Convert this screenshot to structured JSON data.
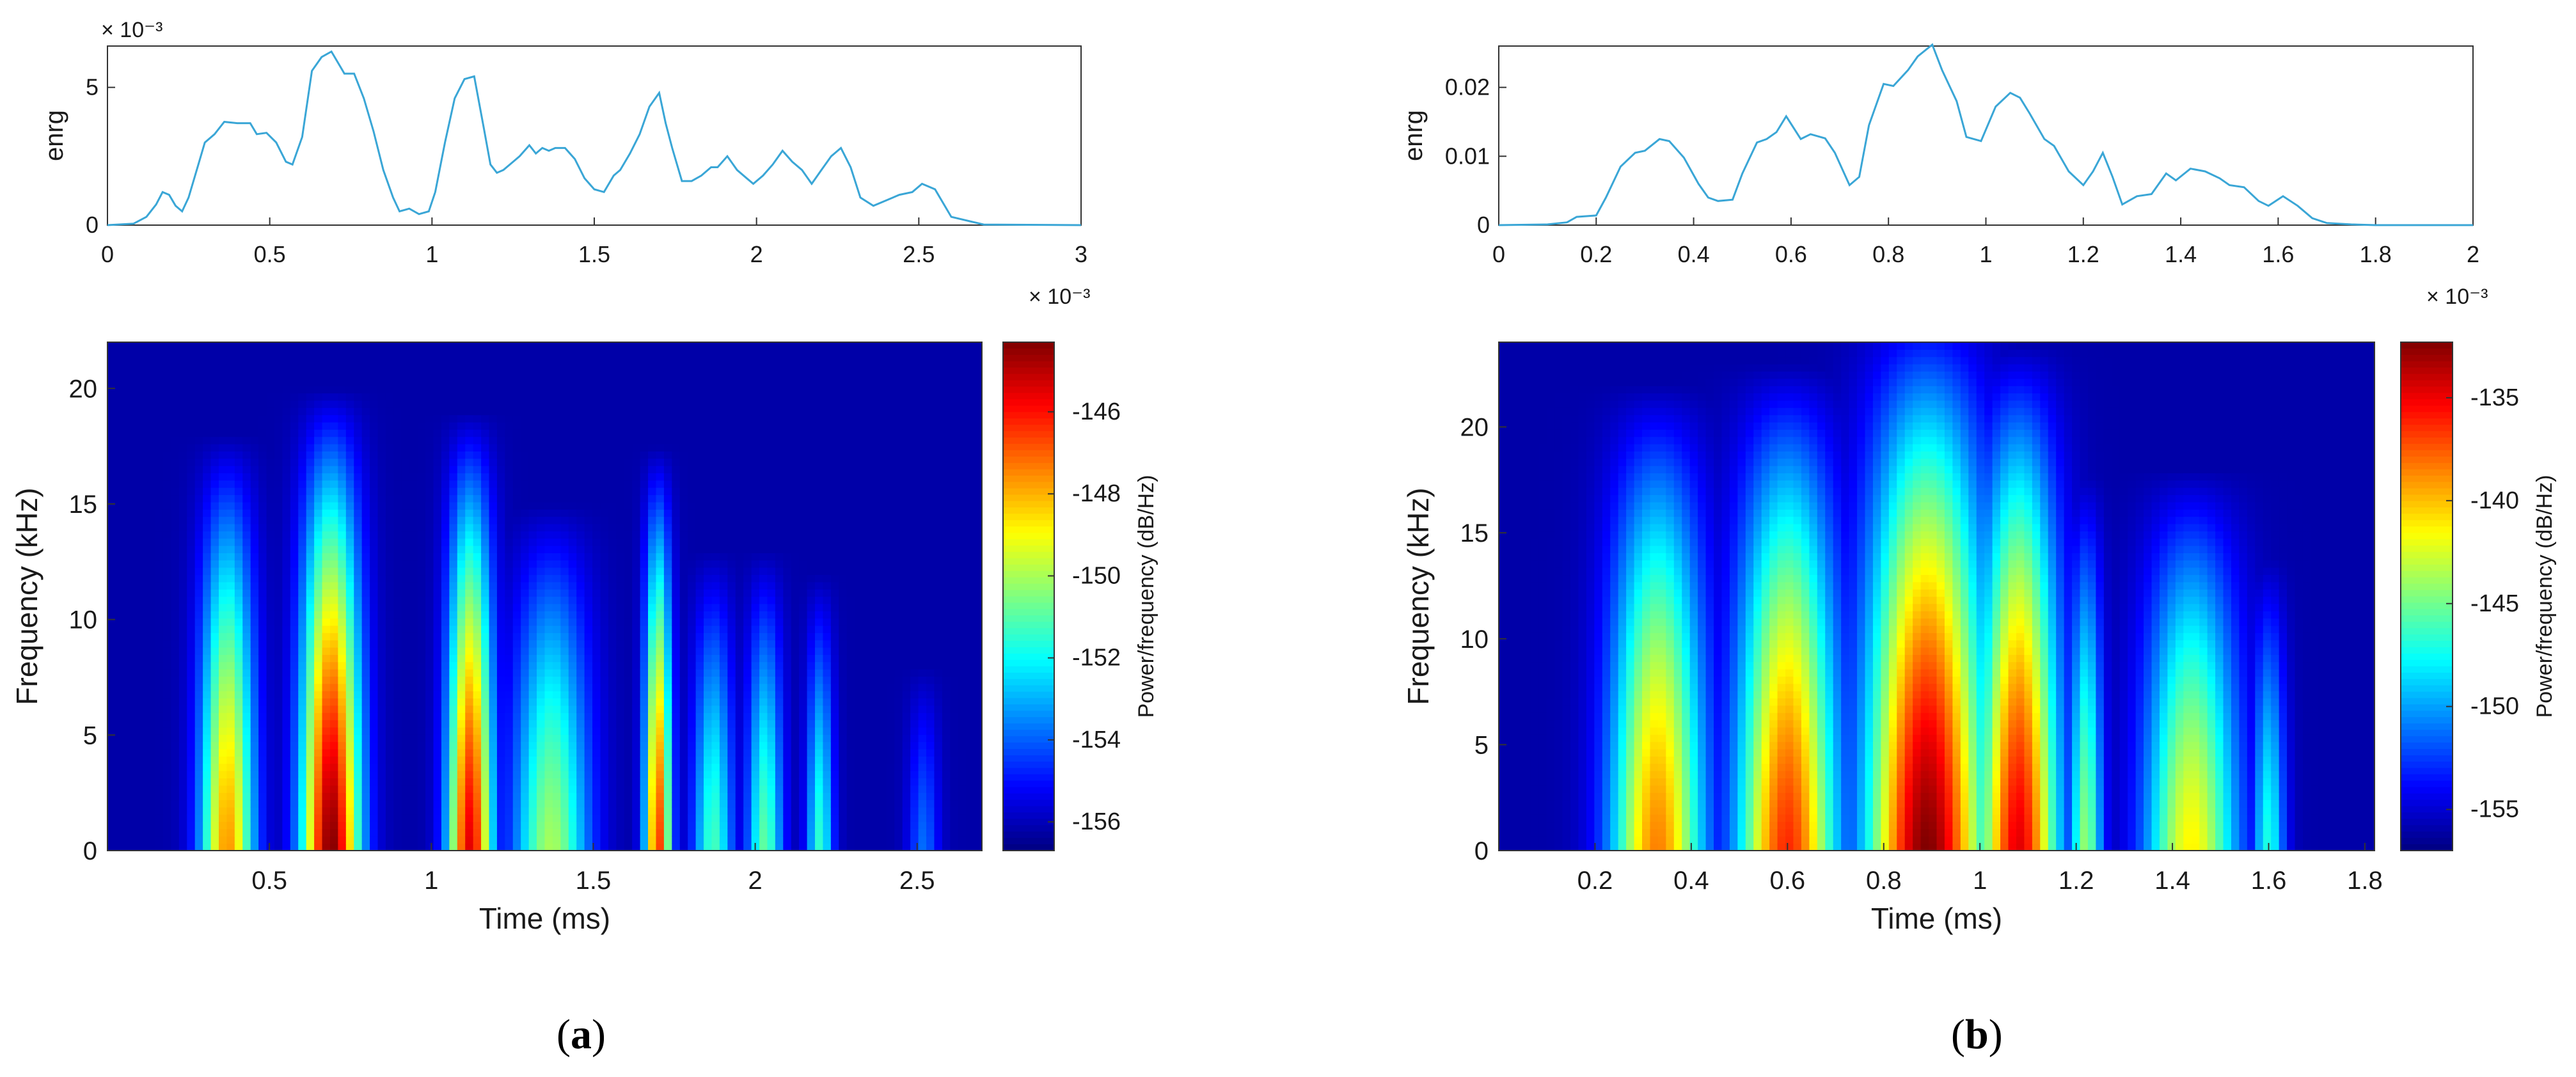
{
  "figure": {
    "panels": [
      {
        "label_open": "(",
        "label_letter": "a",
        "label_close": ")"
      },
      {
        "label_open": "(",
        "label_letter": "b",
        "label_close": ")"
      }
    ]
  },
  "chart_data": [
    {
      "type": "line",
      "panel": "a",
      "title": "",
      "xlabel": "",
      "ylabel": "enrg",
      "xlim": [
        0,
        3
      ],
      "ylim": [
        0,
        6.5
      ],
      "x_ticks": [
        "0",
        "0.5",
        "1",
        "1.5",
        "2",
        "2.5",
        "3"
      ],
      "y_ticks": [
        "0",
        "5"
      ],
      "y_tick_values": [
        0,
        5
      ],
      "exponent_label": "× 10⁻³",
      "line_color": "#3aa6d6",
      "grid": false,
      "series": [
        {
          "name": "energy",
          "x": [
            0,
            0.08,
            0.12,
            0.15,
            0.17,
            0.19,
            0.21,
            0.23,
            0.25,
            0.28,
            0.3,
            0.33,
            0.36,
            0.4,
            0.44,
            0.46,
            0.49,
            0.52,
            0.55,
            0.57,
            0.6,
            0.63,
            0.66,
            0.69,
            0.71,
            0.73,
            0.76,
            0.79,
            0.82,
            0.85,
            0.88,
            0.9,
            0.93,
            0.96,
            0.99,
            1.01,
            1.04,
            1.07,
            1.1,
            1.13,
            1.16,
            1.18,
            1.2,
            1.22,
            1.25,
            1.27,
            1.3,
            1.32,
            1.34,
            1.36,
            1.38,
            1.41,
            1.44,
            1.47,
            1.5,
            1.53,
            1.56,
            1.58,
            1.61,
            1.64,
            1.67,
            1.7,
            1.72,
            1.74,
            1.77,
            1.8,
            1.83,
            1.86,
            1.88,
            1.91,
            1.94,
            1.97,
            1.99,
            2.02,
            2.05,
            2.08,
            2.11,
            2.14,
            2.17,
            2.2,
            2.23,
            2.26,
            2.29,
            2.32,
            2.36,
            2.4,
            2.44,
            2.48,
            2.51,
            2.55,
            2.6,
            2.7,
            3.0
          ],
          "values": [
            0,
            0.05,
            0.3,
            0.75,
            1.2,
            1.1,
            0.7,
            0.5,
            1.0,
            2.2,
            3.0,
            3.3,
            3.75,
            3.7,
            3.7,
            3.3,
            3.35,
            3.0,
            2.3,
            2.2,
            3.2,
            5.6,
            6.1,
            6.3,
            5.9,
            5.5,
            5.5,
            4.6,
            3.4,
            2.0,
            1.0,
            0.5,
            0.6,
            0.4,
            0.5,
            1.2,
            3.0,
            4.6,
            5.3,
            5.4,
            3.5,
            2.2,
            1.9,
            2.0,
            2.3,
            2.5,
            2.9,
            2.6,
            2.8,
            2.7,
            2.8,
            2.8,
            2.4,
            1.7,
            1.3,
            1.2,
            1.8,
            2.0,
            2.6,
            3.3,
            4.3,
            4.8,
            3.7,
            2.8,
            1.6,
            1.6,
            1.8,
            2.1,
            2.1,
            2.5,
            2.0,
            1.7,
            1.5,
            1.8,
            2.2,
            2.7,
            2.3,
            2.0,
            1.5,
            2.0,
            2.5,
            2.8,
            2.1,
            1.0,
            0.7,
            0.9,
            1.1,
            1.2,
            1.5,
            1.3,
            0.3,
            0.02,
            0
          ]
        }
      ]
    },
    {
      "type": "heatmap",
      "panel": "a",
      "title": "",
      "xlabel": "Time (ms)",
      "ylabel": "Frequency (kHz)",
      "xlim": [
        0,
        2.7
      ],
      "ylim": [
        0,
        22
      ],
      "x_ticks": [
        "0.5",
        "1",
        "1.5",
        "2",
        "2.5"
      ],
      "x_tick_values": [
        0.5,
        1,
        1.5,
        2,
        2.5
      ],
      "y_ticks": [
        "0",
        "5",
        "10",
        "15",
        "20"
      ],
      "y_tick_values": [
        0,
        5,
        10,
        15,
        20
      ],
      "exponent_label": "× 10⁻³",
      "colorbar": {
        "label": "Power/frequency (dB/Hz)",
        "range": [
          -156.7,
          -144.3
        ],
        "ticks": [
          "-146",
          "-148",
          "-150",
          "-152",
          "-154",
          "-156"
        ],
        "tick_values": [
          -146,
          -148,
          -150,
          -152,
          -154,
          -156
        ],
        "colormap": "jet"
      },
      "grid": false,
      "series": [
        {
          "name": "burst",
          "center": 0.37,
          "width": 0.12,
          "peak": 0.72,
          "fmax": 18.0
        },
        {
          "name": "burst",
          "center": 0.69,
          "width": 0.13,
          "peak": 1.0,
          "fmax": 20.0
        },
        {
          "name": "burst",
          "center": 1.12,
          "width": 0.1,
          "peak": 0.9,
          "fmax": 19.0
        },
        {
          "name": "burst",
          "center": 1.37,
          "width": 0.17,
          "peak": 0.52,
          "fmax": 15.0
        },
        {
          "name": "burst",
          "center": 1.7,
          "width": 0.06,
          "peak": 0.82,
          "fmax": 17.5
        },
        {
          "name": "burst",
          "center": 1.87,
          "width": 0.09,
          "peak": 0.42,
          "fmax": 13.0
        },
        {
          "name": "burst",
          "center": 2.03,
          "width": 0.08,
          "peak": 0.45,
          "fmax": 13.0
        },
        {
          "name": "burst",
          "center": 2.2,
          "width": 0.06,
          "peak": 0.4,
          "fmax": 12.0
        },
        {
          "name": "burst",
          "center": 2.52,
          "width": 0.07,
          "peak": 0.2,
          "fmax": 8.0
        }
      ]
    },
    {
      "type": "line",
      "panel": "b",
      "title": "",
      "xlabel": "",
      "ylabel": "enrg",
      "xlim": [
        0,
        2
      ],
      "ylim": [
        0,
        0.026
      ],
      "x_ticks": [
        "0",
        "0.2",
        "0.4",
        "0.6",
        "0.8",
        "1",
        "1.2",
        "1.4",
        "1.6",
        "1.8",
        "2"
      ],
      "y_ticks": [
        "0",
        "0.01",
        "0.02"
      ],
      "y_tick_values": [
        0,
        0.01,
        0.02
      ],
      "line_color": "#3aa6d6",
      "grid": false,
      "series": [
        {
          "name": "energy",
          "x": [
            0,
            0.1,
            0.14,
            0.16,
            0.18,
            0.2,
            0.22,
            0.25,
            0.28,
            0.3,
            0.33,
            0.35,
            0.38,
            0.41,
            0.43,
            0.45,
            0.48,
            0.5,
            0.53,
            0.55,
            0.57,
            0.59,
            0.62,
            0.64,
            0.67,
            0.69,
            0.72,
            0.74,
            0.76,
            0.79,
            0.81,
            0.84,
            0.86,
            0.89,
            0.91,
            0.94,
            0.96,
            0.99,
            1.02,
            1.05,
            1.07,
            1.09,
            1.12,
            1.14,
            1.17,
            1.2,
            1.22,
            1.24,
            1.26,
            1.28,
            1.31,
            1.34,
            1.37,
            1.39,
            1.42,
            1.45,
            1.48,
            1.5,
            1.53,
            1.56,
            1.58,
            1.61,
            1.64,
            1.67,
            1.7,
            1.75,
            1.8,
            2.0
          ],
          "values": [
            0,
            0.0001,
            0.0004,
            0.0012,
            0.0013,
            0.0014,
            0.004,
            0.0085,
            0.0105,
            0.0108,
            0.0125,
            0.0122,
            0.0098,
            0.006,
            0.004,
            0.0035,
            0.0037,
            0.0075,
            0.012,
            0.0125,
            0.0135,
            0.0158,
            0.0125,
            0.0132,
            0.0126,
            0.0105,
            0.0058,
            0.007,
            0.0145,
            0.0205,
            0.0202,
            0.0225,
            0.0245,
            0.0262,
            0.0225,
            0.018,
            0.0128,
            0.0122,
            0.0172,
            0.0192,
            0.0185,
            0.0162,
            0.0125,
            0.0115,
            0.0078,
            0.0058,
            0.0078,
            0.0105,
            0.007,
            0.003,
            0.0042,
            0.0045,
            0.0075,
            0.0065,
            0.0082,
            0.0078,
            0.0068,
            0.0058,
            0.0055,
            0.0035,
            0.0028,
            0.0042,
            0.0028,
            0.001,
            0.0003,
            0.0001,
            0,
            0
          ]
        }
      ]
    },
    {
      "type": "heatmap",
      "panel": "b",
      "title": "",
      "xlabel": "Time (ms)",
      "ylabel": "Frequency (kHz)",
      "xlim": [
        0,
        1.82
      ],
      "ylim": [
        0,
        24
      ],
      "x_ticks": [
        "0.2",
        "0.4",
        "0.6",
        "0.8",
        "1",
        "1.2",
        "1.4",
        "1.6",
        "1.8"
      ],
      "x_tick_values": [
        0.2,
        0.4,
        0.6,
        0.8,
        1,
        1.2,
        1.4,
        1.6,
        1.8
      ],
      "y_ticks": [
        "0",
        "5",
        "10",
        "15",
        "20"
      ],
      "y_tick_values": [
        0,
        5,
        10,
        15,
        20
      ],
      "exponent_label": "× 10⁻³",
      "colorbar": {
        "label": "Power/frequency (dB/Hz)",
        "range": [
          -157,
          -132.3
        ],
        "ticks": [
          "-135",
          "-140",
          "-145",
          "-150",
          "-155"
        ],
        "tick_values": [
          -135,
          -140,
          -145,
          -150,
          -155
        ],
        "colormap": "jet"
      },
      "grid": false,
      "series": [
        {
          "name": "burst",
          "center": 0.33,
          "width": 0.14,
          "peak": 0.74,
          "fmax": 22.0
        },
        {
          "name": "burst",
          "center": 0.6,
          "width": 0.15,
          "peak": 0.83,
          "fmax": 23.0
        },
        {
          "name": "burst",
          "center": 0.89,
          "width": 0.18,
          "peak": 1.0,
          "fmax": 26.0
        },
        {
          "name": "burst",
          "center": 1.08,
          "width": 0.12,
          "peak": 0.9,
          "fmax": 24.0
        },
        {
          "name": "burst",
          "center": 1.22,
          "width": 0.05,
          "peak": 0.5,
          "fmax": 18.0
        },
        {
          "name": "burst",
          "center": 1.44,
          "width": 0.14,
          "peak": 0.62,
          "fmax": 18.0
        },
        {
          "name": "burst",
          "center": 1.6,
          "width": 0.05,
          "peak": 0.38,
          "fmax": 14.0
        }
      ]
    }
  ]
}
